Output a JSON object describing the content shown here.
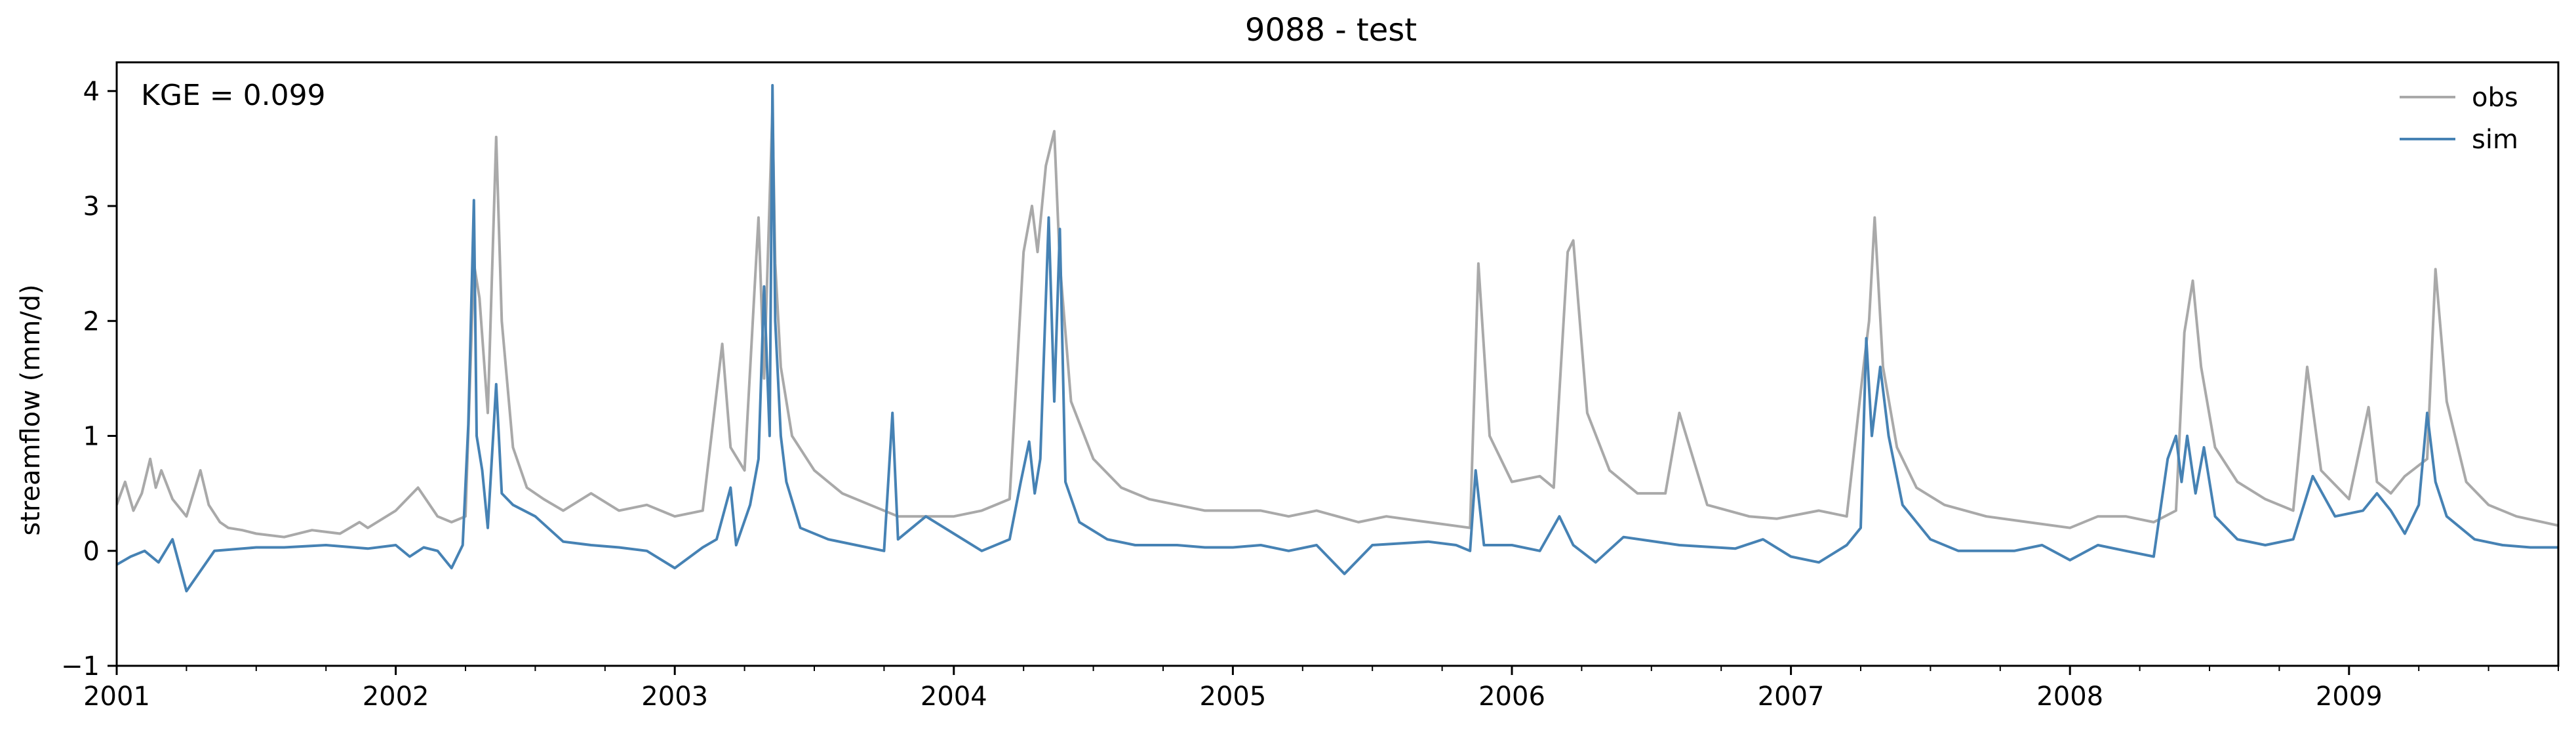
{
  "chart_data": {
    "type": "line",
    "title": "9088 - test",
    "xlabel": "",
    "ylabel": "streamflow (mm/d)",
    "annotation": "KGE = 0.099",
    "xlim": [
      2001.0,
      2009.75
    ],
    "ylim": [
      -1,
      4.25
    ],
    "x_ticks": [
      "2001",
      "2002",
      "2003",
      "2004",
      "2005",
      "2006",
      "2007",
      "2008",
      "2009"
    ],
    "x_tick_values": [
      2001,
      2002,
      2003,
      2004,
      2005,
      2006,
      2007,
      2008,
      2009
    ],
    "y_ticks": [
      "−1",
      "0",
      "1",
      "2",
      "3",
      "4"
    ],
    "y_tick_values": [
      -1,
      0,
      1,
      2,
      3,
      4
    ],
    "grid": false,
    "legend": "top-right",
    "series": [
      {
        "name": "obs",
        "color": "#a9a9a9",
        "x": [
          2001.0,
          2001.03,
          2001.06,
          2001.09,
          2001.12,
          2001.14,
          2001.16,
          2001.2,
          2001.25,
          2001.3,
          2001.33,
          2001.37,
          2001.4,
          2001.45,
          2001.5,
          2001.6,
          2001.7,
          2001.8,
          2001.87,
          2001.9,
          2002.0,
          2002.08,
          2002.15,
          2002.2,
          2002.25,
          2002.28,
          2002.3,
          2002.33,
          2002.36,
          2002.38,
          2002.42,
          2002.47,
          2002.53,
          2002.6,
          2002.7,
          2002.8,
          2002.9,
          2003.0,
          2003.1,
          2003.17,
          2003.2,
          2003.25,
          2003.3,
          2003.32,
          2003.35,
          2003.36,
          2003.38,
          2003.42,
          2003.5,
          2003.6,
          2003.7,
          2003.8,
          2003.9,
          2004.0,
          2004.1,
          2004.2,
          2004.25,
          2004.28,
          2004.3,
          2004.33,
          2004.36,
          2004.38,
          2004.42,
          2004.5,
          2004.6,
          2004.7,
          2004.8,
          2004.9,
          2005.0,
          2005.1,
          2005.2,
          2005.3,
          2005.45,
          2005.55,
          2005.7,
          2005.85,
          2005.88,
          2005.92,
          2006.0,
          2006.1,
          2006.15,
          2006.2,
          2006.22,
          2006.27,
          2006.35,
          2006.45,
          2006.55,
          2006.6,
          2006.7,
          2006.85,
          2006.95,
          2007.1,
          2007.2,
          2007.26,
          2007.28,
          2007.3,
          2007.33,
          2007.38,
          2007.45,
          2007.55,
          2007.7,
          2007.85,
          2008.0,
          2008.1,
          2008.2,
          2008.3,
          2008.38,
          2008.41,
          2008.44,
          2008.47,
          2008.52,
          2008.6,
          2008.7,
          2008.8,
          2008.85,
          2008.9,
          2009.0,
          2009.07,
          2009.1,
          2009.15,
          2009.2,
          2009.28,
          2009.31,
          2009.35,
          2009.42,
          2009.5,
          2009.6,
          2009.75
        ],
        "y": [
          0.4,
          0.6,
          0.35,
          0.5,
          0.8,
          0.55,
          0.7,
          0.45,
          0.3,
          0.7,
          0.4,
          0.25,
          0.2,
          0.18,
          0.15,
          0.12,
          0.18,
          0.15,
          0.25,
          0.2,
          0.35,
          0.55,
          0.3,
          0.25,
          0.3,
          2.5,
          2.2,
          1.2,
          3.6,
          2.0,
          0.9,
          0.55,
          0.45,
          0.35,
          0.5,
          0.35,
          0.4,
          0.3,
          0.35,
          1.8,
          0.9,
          0.7,
          2.9,
          1.5,
          3.85,
          2.5,
          1.6,
          1.0,
          0.7,
          0.5,
          0.4,
          0.3,
          0.3,
          0.3,
          0.35,
          0.45,
          2.6,
          3.0,
          2.6,
          3.35,
          3.65,
          2.5,
          1.3,
          0.8,
          0.55,
          0.45,
          0.4,
          0.35,
          0.35,
          0.35,
          0.3,
          0.35,
          0.25,
          0.3,
          0.25,
          0.2,
          2.5,
          1.0,
          0.6,
          0.65,
          0.55,
          2.6,
          2.7,
          1.2,
          0.7,
          0.5,
          0.5,
          1.2,
          0.4,
          0.3,
          0.28,
          0.35,
          0.3,
          1.6,
          2.0,
          2.9,
          1.6,
          0.9,
          0.55,
          0.4,
          0.3,
          0.25,
          0.2,
          0.3,
          0.3,
          0.25,
          0.35,
          1.9,
          2.35,
          1.6,
          0.9,
          0.6,
          0.45,
          0.35,
          1.6,
          0.7,
          0.45,
          1.25,
          0.6,
          0.5,
          0.65,
          0.8,
          2.45,
          1.3,
          0.6,
          0.4,
          0.3,
          0.22
        ]
      },
      {
        "name": "sim",
        "color": "#4682b4",
        "x": [
          2001.0,
          2001.05,
          2001.1,
          2001.15,
          2001.2,
          2001.25,
          2001.35,
          2001.5,
          2001.6,
          2001.75,
          2001.9,
          2002.0,
          2002.05,
          2002.1,
          2002.15,
          2002.2,
          2002.24,
          2002.26,
          2002.28,
          2002.29,
          2002.31,
          2002.33,
          2002.36,
          2002.38,
          2002.42,
          2002.5,
          2002.6,
          2002.7,
          2002.8,
          2002.9,
          2003.0,
          2003.1,
          2003.15,
          2003.2,
          2003.22,
          2003.27,
          2003.3,
          2003.32,
          2003.34,
          2003.35,
          2003.36,
          2003.38,
          2003.4,
          2003.45,
          2003.55,
          2003.65,
          2003.75,
          2003.78,
          2003.8,
          2003.9,
          2004.0,
          2004.1,
          2004.2,
          2004.24,
          2004.27,
          2004.29,
          2004.31,
          2004.34,
          2004.36,
          2004.38,
          2004.4,
          2004.45,
          2004.55,
          2004.65,
          2004.8,
          2004.9,
          2005.0,
          2005.1,
          2005.2,
          2005.3,
          2005.4,
          2005.5,
          2005.7,
          2005.8,
          2005.85,
          2005.87,
          2005.9,
          2006.0,
          2006.1,
          2006.17,
          2006.22,
          2006.3,
          2006.4,
          2006.6,
          2006.8,
          2006.9,
          2007.0,
          2007.1,
          2007.2,
          2007.25,
          2007.27,
          2007.29,
          2007.32,
          2007.35,
          2007.4,
          2007.5,
          2007.6,
          2007.8,
          2007.9,
          2008.0,
          2008.1,
          2008.2,
          2008.3,
          2008.35,
          2008.38,
          2008.4,
          2008.42,
          2008.45,
          2008.48,
          2008.52,
          2008.6,
          2008.7,
          2008.8,
          2008.87,
          2008.95,
          2009.05,
          2009.1,
          2009.15,
          2009.2,
          2009.25,
          2009.28,
          2009.31,
          2009.35,
          2009.45,
          2009.55,
          2009.65,
          2009.75
        ],
        "y": [
          -0.12,
          -0.05,
          0.0,
          -0.1,
          0.1,
          -0.35,
          0.0,
          0.03,
          0.03,
          0.05,
          0.02,
          0.05,
          -0.05,
          0.03,
          0.0,
          -0.15,
          0.05,
          1.1,
          3.05,
          1.0,
          0.7,
          0.2,
          1.45,
          0.5,
          0.4,
          0.3,
          0.08,
          0.05,
          0.03,
          0.0,
          -0.15,
          0.03,
          0.1,
          0.55,
          0.05,
          0.4,
          0.8,
          2.3,
          1.0,
          4.05,
          2.0,
          1.0,
          0.6,
          0.2,
          0.1,
          0.05,
          0.0,
          1.2,
          0.1,
          0.3,
          0.15,
          0.0,
          0.1,
          0.6,
          0.95,
          0.5,
          0.8,
          2.9,
          1.3,
          2.8,
          0.6,
          0.25,
          0.1,
          0.05,
          0.05,
          0.03,
          0.03,
          0.05,
          0.0,
          0.05,
          -0.2,
          0.05,
          0.08,
          0.05,
          0.0,
          0.7,
          0.05,
          0.05,
          0.0,
          0.3,
          0.05,
          -0.1,
          0.12,
          0.05,
          0.02,
          0.1,
          -0.05,
          -0.1,
          0.05,
          0.2,
          1.85,
          1.0,
          1.6,
          1.0,
          0.4,
          0.1,
          0.0,
          0.0,
          0.05,
          -0.08,
          0.05,
          0.0,
          -0.05,
          0.8,
          1.0,
          0.6,
          1.0,
          0.5,
          0.9,
          0.3,
          0.1,
          0.05,
          0.1,
          0.65,
          0.3,
          0.35,
          0.5,
          0.35,
          0.15,
          0.4,
          1.2,
          0.6,
          0.3,
          0.1,
          0.05,
          0.03,
          0.03
        ]
      }
    ]
  }
}
